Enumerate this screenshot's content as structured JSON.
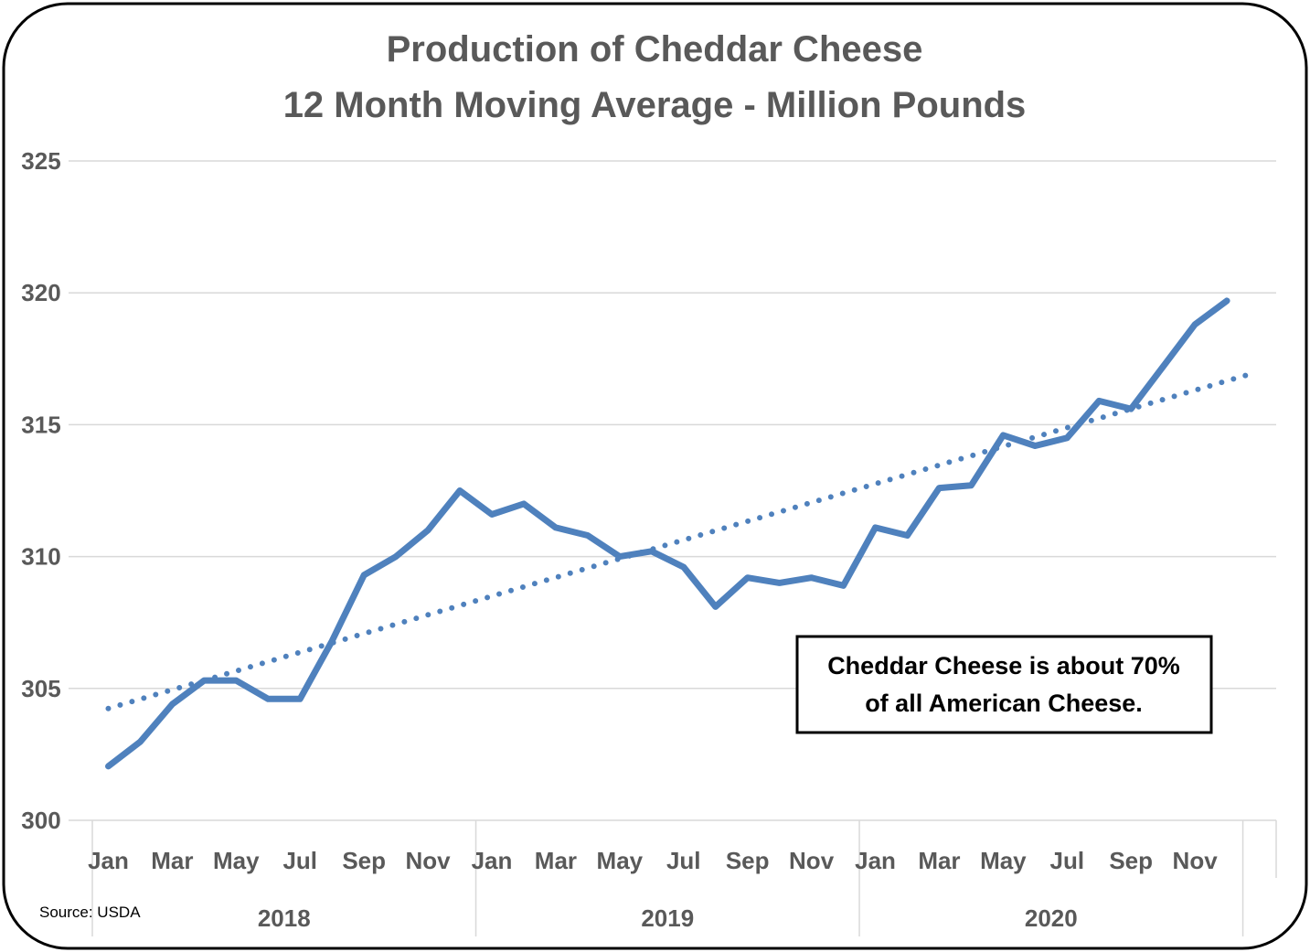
{
  "chart_data": {
    "type": "line",
    "title": [
      "Production of Cheddar Cheese",
      "12 Month Moving Average - Million Pounds"
    ],
    "xlabel": "",
    "ylabel": "",
    "ylim": [
      300,
      325
    ],
    "yticks": [
      "300",
      "305",
      "310",
      "315",
      "320",
      "325"
    ],
    "grid": true,
    "legend": "none",
    "month_labels": [
      "Jan",
      "",
      "Mar",
      "",
      "May",
      "",
      "Jul",
      "",
      "Sep",
      "",
      "Nov",
      "",
      "Jan",
      "",
      "Mar",
      "",
      "May",
      "",
      "Jul",
      "",
      "Sep",
      "",
      "Nov",
      "",
      "Jan",
      "",
      "Mar",
      "",
      "May",
      "",
      "Jul",
      "",
      "Sep",
      "",
      "Nov",
      ""
    ],
    "years": [
      "2018",
      "2019",
      "2020"
    ],
    "series": [
      {
        "color": "#4f81bd",
        "values": [
          302.05,
          302.98,
          304.4,
          305.3,
          305.3,
          304.6,
          304.6,
          306.8,
          309.3,
          310.0,
          311.0,
          312.5,
          311.6,
          312.0,
          311.1,
          310.8,
          310.0,
          310.2,
          309.6,
          308.1,
          309.2,
          309.0,
          309.2,
          308.9,
          311.1,
          310.8,
          312.6,
          312.7,
          314.6,
          314.2,
          314.5,
          315.9,
          315.6,
          317.2,
          318.8,
          319.7
        ]
      }
    ],
    "trendline": {
      "type": "linear",
      "style": "dotted",
      "color": "#4f81bd"
    },
    "annotation": [
      "Cheddar Cheese is about 70%",
      "of all American Cheese."
    ],
    "source": "Source: USDA"
  }
}
